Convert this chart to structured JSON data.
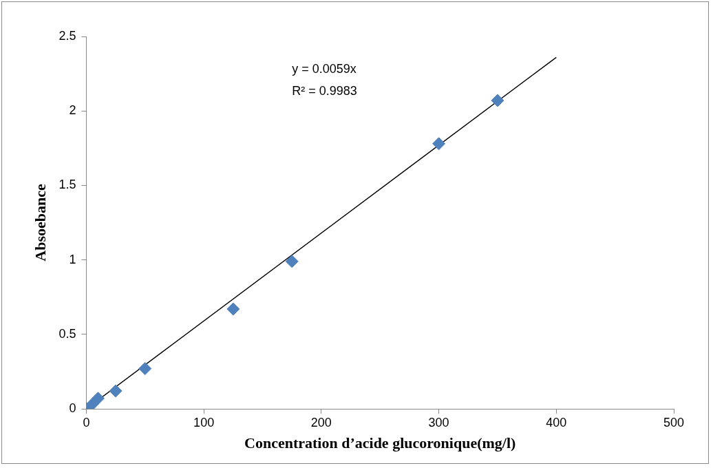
{
  "chart_data": {
    "type": "scatter",
    "xlabel": "Concentration d’acide glucoronique(mg/l)",
    "ylabel": "Absoebance",
    "series": [
      {
        "color": "#4f81bd",
        "x": [
          0,
          5,
          10,
          25,
          50,
          125,
          175,
          300,
          350
        ],
        "values": [
          0,
          0.03,
          0.07,
          0.12,
          0.27,
          0.67,
          0.99,
          1.78,
          2.07
        ]
      },
      {
        "type": "line",
        "marker": "none",
        "color": "#000000",
        "x": [
          0,
          400
        ],
        "values": [
          0,
          2.36
        ]
      }
    ],
    "xlim": [
      0,
      500
    ],
    "xticks": [
      0,
      100,
      200,
      300,
      400,
      500
    ],
    "ylim": [
      0,
      2.5
    ],
    "yticks": [
      0,
      0.5,
      1,
      1.5,
      2,
      2.5
    ],
    "annotations": [
      "y = 0.0059x",
      "R² = 0.9983"
    ],
    "marker": "diamond",
    "grid": false,
    "legend": false
  }
}
